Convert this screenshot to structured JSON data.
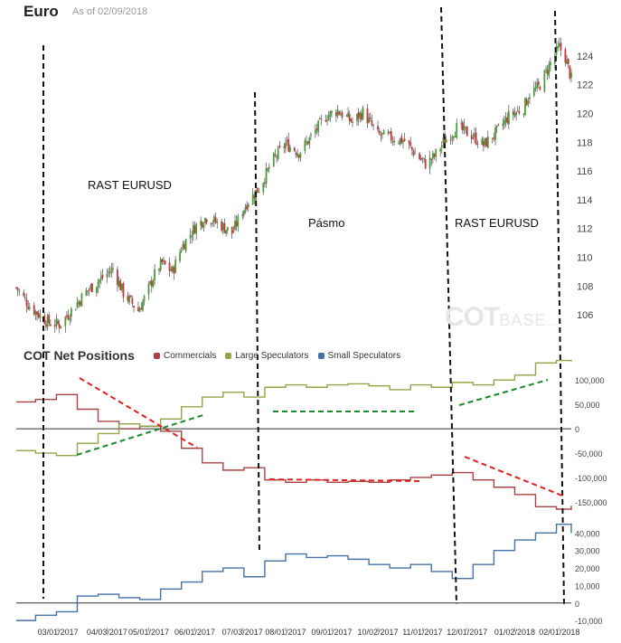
{
  "header": {
    "title": "Euro",
    "as_of": "As of 02/09/2018"
  },
  "watermark": {
    "main": "COT",
    "suffix": "BASE",
    "tail": "..."
  },
  "cot_panel": {
    "title": "COT Net Positions"
  },
  "annotations": {
    "left": "RAST EURUSD",
    "middle": "Pásmo",
    "right": "RAST EURUSD"
  },
  "colors": {
    "commercials": "#a94342",
    "large": "#8fa845",
    "small": "#4572a7",
    "up": "#4b9e3a",
    "down": "#c8383a"
  },
  "chart_data": [
    {
      "type": "candlestick",
      "title": "Euro",
      "x_ticks": [
        "03/01/2017",
        "04/03/2017",
        "05/01/2017",
        "06/01/2017",
        "07/03/2017",
        "08/01/2017",
        "09/01/2017",
        "10/02/2017",
        "11/01/2017",
        "12/01/2017",
        "01/02/2018",
        "02/01/2018"
      ],
      "x_range": [
        "2017-02-01",
        "2018-02-09"
      ],
      "y_ticks": [
        106,
        108,
        110,
        112,
        114,
        116,
        118,
        120,
        122,
        124
      ],
      "ylim": [
        104.5,
        126
      ],
      "price_path": [
        [
          "2017-02-01",
          107.9
        ],
        [
          "2017-02-10",
          106.6
        ],
        [
          "2017-02-22",
          105.5
        ],
        [
          "2017-03-02",
          105.3
        ],
        [
          "2017-03-10",
          106.3
        ],
        [
          "2017-03-20",
          107.6
        ],
        [
          "2017-03-31",
          108.6
        ],
        [
          "2017-04-07",
          109.2
        ],
        [
          "2017-04-14",
          107.5
        ],
        [
          "2017-04-24",
          106.3
        ],
        [
          "2017-04-28",
          107.1
        ],
        [
          "2017-05-05",
          108.8
        ],
        [
          "2017-05-10",
          109.6
        ],
        [
          "2017-05-17",
          109.0
        ],
        [
          "2017-05-23",
          110.7
        ],
        [
          "2017-06-01",
          112.1
        ],
        [
          "2017-06-09",
          112.8
        ],
        [
          "2017-06-19",
          112.2
        ],
        [
          "2017-06-26",
          111.7
        ],
        [
          "2017-07-06",
          113.8
        ],
        [
          "2017-07-14",
          114.8
        ],
        [
          "2017-07-24",
          116.8
        ],
        [
          "2017-08-01",
          117.9
        ],
        [
          "2017-08-10",
          117.3
        ],
        [
          "2017-08-17",
          118.2
        ],
        [
          "2017-08-28",
          119.8
        ],
        [
          "2017-09-05",
          120.2
        ],
        [
          "2017-09-15",
          119.4
        ],
        [
          "2017-09-22",
          120.1
        ],
        [
          "2017-10-02",
          118.5
        ],
        [
          "2017-10-11",
          118.3
        ],
        [
          "2017-10-20",
          118.1
        ],
        [
          "2017-10-27",
          117.2
        ],
        [
          "2017-11-03",
          116.5
        ],
        [
          "2017-11-09",
          117.0
        ],
        [
          "2017-11-15",
          118.0
        ],
        [
          "2017-11-24",
          119.0
        ],
        [
          "2017-12-04",
          118.5
        ],
        [
          "2017-12-12",
          117.8
        ],
        [
          "2017-12-20",
          118.6
        ],
        [
          "2017-12-29",
          119.8
        ],
        [
          "2018-01-08",
          120.4
        ],
        [
          "2018-01-12",
          121.4
        ],
        [
          "2018-01-18",
          121.8
        ],
        [
          "2018-01-26",
          123.5
        ],
        [
          "2018-02-01",
          124.6
        ],
        [
          "2018-02-05",
          123.9
        ],
        [
          "2018-02-09",
          122.4
        ]
      ]
    },
    {
      "type": "step-line",
      "title": "COT Net Positions",
      "y_ticks": [
        -150000,
        -100000,
        -50000,
        0,
        50000,
        100000
      ],
      "ylim": [
        -165000,
        130000
      ],
      "series": [
        {
          "name": "Commercials",
          "values": [
            [
              "2017-02-01",
              55000
            ],
            [
              "2017-02-14",
              60000
            ],
            [
              "2017-02-28",
              70000
            ],
            [
              "2017-03-14",
              40000
            ],
            [
              "2017-03-28",
              15000
            ],
            [
              "2017-04-11",
              0
            ],
            [
              "2017-04-25",
              5000
            ],
            [
              "2017-05-09",
              -5000
            ],
            [
              "2017-05-23",
              -40000
            ],
            [
              "2017-06-06",
              -70000
            ],
            [
              "2017-06-20",
              -85000
            ],
            [
              "2017-07-04",
              -80000
            ],
            [
              "2017-07-18",
              -105000
            ],
            [
              "2017-08-01",
              -110000
            ],
            [
              "2017-08-15",
              -105000
            ],
            [
              "2017-08-29",
              -110000
            ],
            [
              "2017-09-12",
              -108000
            ],
            [
              "2017-09-26",
              -110000
            ],
            [
              "2017-10-10",
              -105000
            ],
            [
              "2017-10-24",
              -100000
            ],
            [
              "2017-11-07",
              -95000
            ],
            [
              "2017-11-21",
              -90000
            ],
            [
              "2017-12-05",
              -105000
            ],
            [
              "2017-12-19",
              -120000
            ],
            [
              "2018-01-02",
              -135000
            ],
            [
              "2018-01-16",
              -160000
            ],
            [
              "2018-01-30",
              -165000
            ],
            [
              "2018-02-09",
              -158000
            ]
          ]
        },
        {
          "name": "Large Speculators",
          "values": [
            [
              "2017-02-01",
              -45000
            ],
            [
              "2017-02-14",
              -50000
            ],
            [
              "2017-02-28",
              -55000
            ],
            [
              "2017-03-14",
              -30000
            ],
            [
              "2017-03-28",
              -10000
            ],
            [
              "2017-04-11",
              10000
            ],
            [
              "2017-04-25",
              5000
            ],
            [
              "2017-05-09",
              20000
            ],
            [
              "2017-05-23",
              45000
            ],
            [
              "2017-06-06",
              65000
            ],
            [
              "2017-06-20",
              75000
            ],
            [
              "2017-07-04",
              65000
            ],
            [
              "2017-07-18",
              85000
            ],
            [
              "2017-08-01",
              90000
            ],
            [
              "2017-08-15",
              85000
            ],
            [
              "2017-08-29",
              90000
            ],
            [
              "2017-09-12",
              92000
            ],
            [
              "2017-09-26",
              88000
            ],
            [
              "2017-10-10",
              80000
            ],
            [
              "2017-10-24",
              90000
            ],
            [
              "2017-11-07",
              85000
            ],
            [
              "2017-11-21",
              95000
            ],
            [
              "2017-12-05",
              90000
            ],
            [
              "2017-12-19",
              100000
            ],
            [
              "2018-01-02",
              110000
            ],
            [
              "2018-01-16",
              135000
            ],
            [
              "2018-01-30",
              140000
            ],
            [
              "2018-02-09",
              138000
            ]
          ]
        },
        {
          "name": "Small Speculators",
          "values": [
            [
              "2017-02-01",
              -10000
            ],
            [
              "2017-02-14",
              -7000
            ],
            [
              "2017-02-28",
              -5000
            ],
            [
              "2017-03-14",
              4000
            ],
            [
              "2017-03-28",
              5000
            ],
            [
              "2017-04-11",
              3000
            ],
            [
              "2017-04-25",
              2000
            ],
            [
              "2017-05-09",
              8000
            ],
            [
              "2017-05-23",
              12000
            ],
            [
              "2017-06-06",
              18000
            ],
            [
              "2017-06-20",
              20000
            ],
            [
              "2017-07-04",
              15000
            ],
            [
              "2017-07-18",
              24000
            ],
            [
              "2017-08-01",
              28000
            ],
            [
              "2017-08-15",
              26000
            ],
            [
              "2017-08-29",
              27000
            ],
            [
              "2017-09-12",
              25000
            ],
            [
              "2017-09-26",
              22000
            ],
            [
              "2017-10-10",
              20000
            ],
            [
              "2017-10-24",
              22000
            ],
            [
              "2017-11-07",
              18000
            ],
            [
              "2017-11-21",
              14000
            ],
            [
              "2017-12-05",
              22000
            ],
            [
              "2017-12-19",
              30000
            ],
            [
              "2018-01-02",
              36000
            ],
            [
              "2018-01-16",
              40000
            ],
            [
              "2018-01-30",
              45000
            ],
            [
              "2018-02-09",
              40000
            ]
          ]
        }
      ],
      "small_speculators_axis": {
        "y_ticks": [
          -10000,
          0,
          10000,
          20000,
          30000,
          40000
        ],
        "ylim": [
          -12000,
          50000
        ]
      }
    }
  ]
}
